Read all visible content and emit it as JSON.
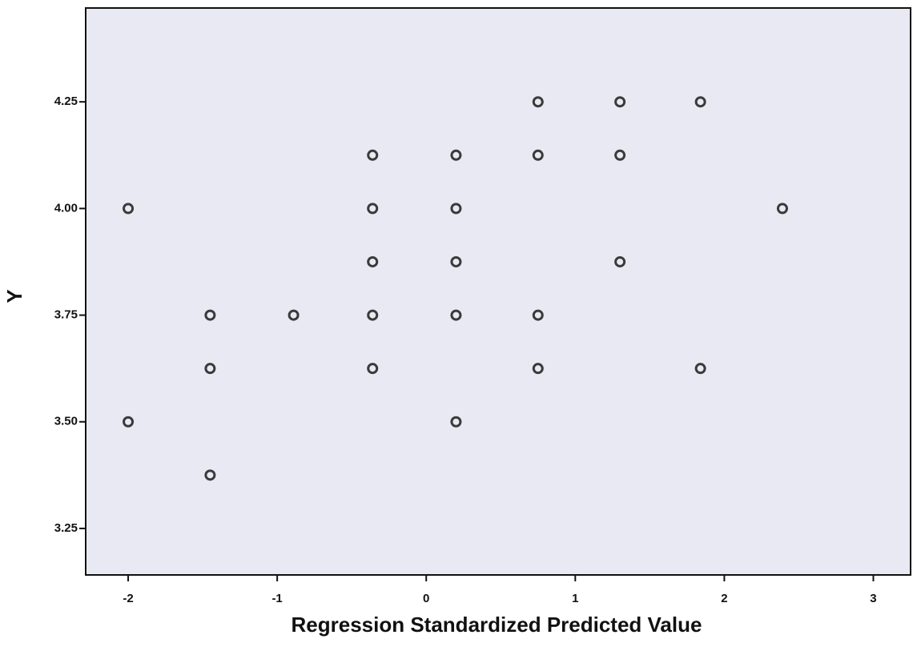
{
  "chart_data": {
    "type": "scatter",
    "x_label": "Regression Standardized Predicted Value",
    "y_label": "Y",
    "x": [
      0.75,
      1.3,
      1.84,
      -0.36,
      0.2,
      0.75,
      1.3,
      -2.0,
      -0.36,
      0.2,
      2.39,
      -0.36,
      0.2,
      1.3,
      -1.45,
      -0.89,
      -0.36,
      0.2,
      0.75,
      -1.45,
      -0.36,
      0.75,
      1.84,
      -2.0,
      0.2,
      -1.45
    ],
    "values": [
      4.25,
      4.25,
      4.25,
      4.125,
      4.125,
      4.125,
      4.125,
      4.0,
      4.0,
      4.0,
      4.0,
      3.875,
      3.875,
      3.875,
      3.75,
      3.75,
      3.75,
      3.75,
      3.75,
      3.625,
      3.625,
      3.625,
      3.625,
      3.5,
      3.5,
      3.375
    ],
    "color": "#3a3a3a",
    "background": "#e9e9f3",
    "xlim": [
      -2.285,
      3.25
    ],
    "ylim": [
      3.141,
      4.47
    ],
    "xticks": [
      -2,
      -1,
      0,
      1,
      2,
      3
    ],
    "yticks": [
      {
        "value": 3.25,
        "label": "3.25"
      },
      {
        "value": 3.5,
        "label": "3.50"
      },
      {
        "value": 3.75,
        "label": "3.75"
      },
      {
        "value": 4.0,
        "label": "4.00"
      },
      {
        "value": 4.25,
        "label": "4.25"
      }
    ]
  }
}
